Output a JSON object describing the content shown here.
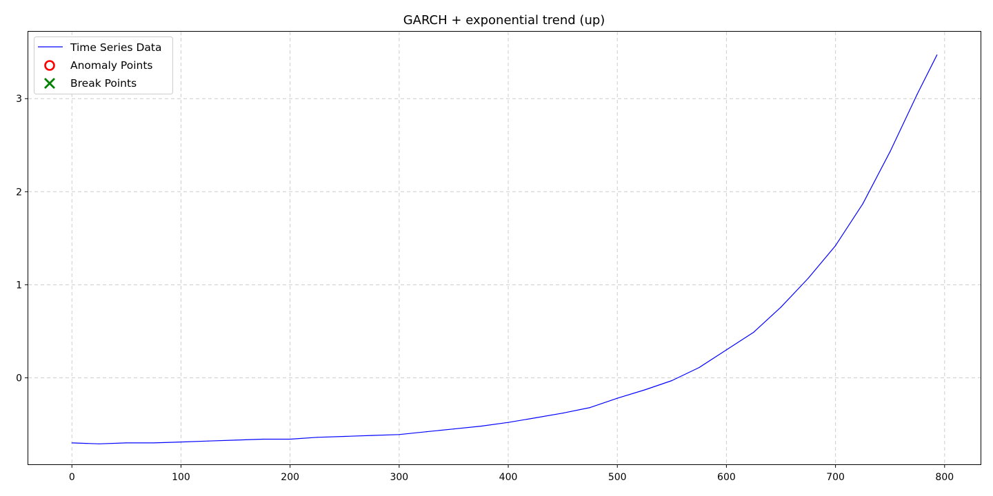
{
  "chart_data": {
    "type": "line",
    "title": "GARCH + exponential trend (up)",
    "xlabel": "",
    "ylabel": "",
    "xlim": [
      -40,
      833
    ],
    "ylim": [
      -0.93,
      3.72
    ],
    "xticks": [
      0,
      100,
      200,
      300,
      400,
      500,
      600,
      700,
      800
    ],
    "yticks": [
      0,
      1,
      2,
      3
    ],
    "grid": true,
    "legend_position": "top-left",
    "legend": [
      {
        "label": "Time Series Data",
        "marker": "line",
        "color": "#0000ff"
      },
      {
        "label": "Anomaly Points",
        "marker": "circle",
        "color": "#ff0000"
      },
      {
        "label": "Break Points",
        "marker": "x",
        "color": "#008000"
      }
    ],
    "series": [
      {
        "name": "Time Series Data",
        "color": "#0000ff",
        "x": [
          0,
          25,
          50,
          75,
          100,
          125,
          150,
          175,
          200,
          225,
          250,
          275,
          300,
          325,
          350,
          375,
          400,
          425,
          450,
          475,
          500,
          525,
          550,
          575,
          600,
          625,
          650,
          675,
          700,
          725,
          750,
          775,
          793
        ],
        "y": [
          -0.7,
          -0.71,
          -0.7,
          -0.7,
          -0.69,
          -0.68,
          -0.67,
          -0.66,
          -0.66,
          -0.64,
          -0.63,
          -0.62,
          -0.61,
          -0.58,
          -0.55,
          -0.52,
          -0.48,
          -0.43,
          -0.38,
          -0.32,
          -0.22,
          -0.13,
          -0.03,
          0.11,
          0.3,
          0.49,
          0.76,
          1.07,
          1.42,
          1.87,
          2.43,
          3.05,
          3.47
        ]
      }
    ],
    "anomaly_points": [],
    "break_points": []
  }
}
